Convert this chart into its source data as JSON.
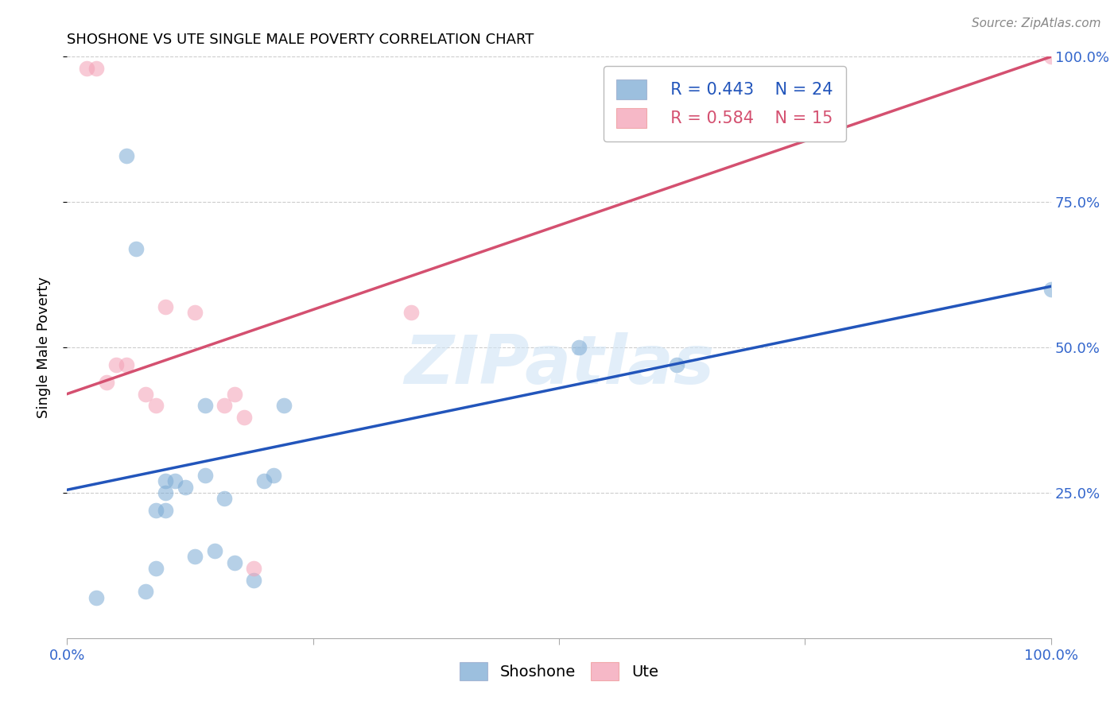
{
  "title": "SHOSHONE VS UTE SINGLE MALE POVERTY CORRELATION CHART",
  "source": "Source: ZipAtlas.com",
  "ylabel": "Single Male Poverty",
  "shoshone_color": "#7BAAD4",
  "ute_color": "#F4A0B5",
  "shoshone_line_color": "#2255BB",
  "ute_line_color": "#D45070",
  "legend_R_shoshone": "R = 0.443",
  "legend_N_shoshone": "N = 24",
  "legend_R_ute": "R = 0.584",
  "legend_N_ute": "N = 15",
  "watermark_text": "ZIPatlas",
  "xlim": [
    0.0,
    1.0
  ],
  "ylim": [
    0.0,
    1.0
  ],
  "shoshone_x": [
    0.03,
    0.06,
    0.07,
    0.08,
    0.09,
    0.09,
    0.1,
    0.1,
    0.1,
    0.11,
    0.12,
    0.13,
    0.14,
    0.14,
    0.15,
    0.16,
    0.17,
    0.19,
    0.2,
    0.21,
    0.22,
    0.52,
    0.62,
    1.0
  ],
  "shoshone_y": [
    0.07,
    0.83,
    0.67,
    0.08,
    0.12,
    0.22,
    0.22,
    0.27,
    0.25,
    0.27,
    0.26,
    0.14,
    0.28,
    0.4,
    0.15,
    0.24,
    0.13,
    0.1,
    0.27,
    0.28,
    0.4,
    0.5,
    0.47,
    0.6
  ],
  "ute_x": [
    0.02,
    0.03,
    0.04,
    0.05,
    0.06,
    0.08,
    0.09,
    0.1,
    0.13,
    0.16,
    0.17,
    0.18,
    0.19,
    0.35,
    1.0
  ],
  "ute_y": [
    0.98,
    0.98,
    0.44,
    0.47,
    0.47,
    0.42,
    0.4,
    0.57,
    0.56,
    0.4,
    0.42,
    0.38,
    0.12,
    0.56,
    1.0
  ],
  "blue_line_x0": 0.0,
  "blue_line_y0": 0.255,
  "blue_line_x1": 1.0,
  "blue_line_y1": 0.605,
  "pink_line_x0": 0.0,
  "pink_line_y0": 0.42,
  "pink_line_x1": 1.0,
  "pink_line_y1": 1.0
}
